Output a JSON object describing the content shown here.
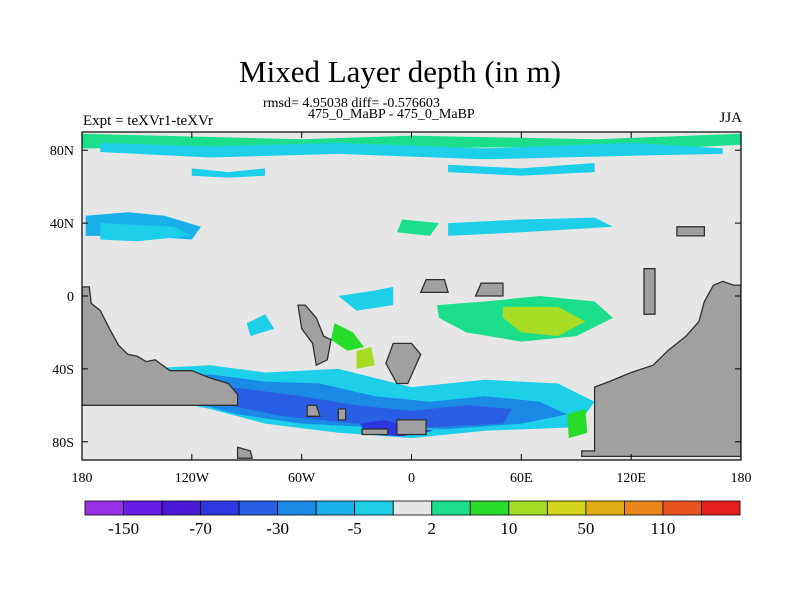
{
  "title": "Mixed Layer depth (in m)",
  "stats_text": "rmsd= 4.95038 diff= -0.576603",
  "subtitle": "475_0_MaBP - 475_0_MaBP",
  "experiment_label": "Expt = teXVr1-teXVr",
  "season": "JJA",
  "colors": {
    "land": "#a0a0a0",
    "background": "#e6e6e6",
    "coast": "#303030"
  },
  "x_ticks": [
    {
      "lon": -180,
      "label": "180"
    },
    {
      "lon": -120,
      "label": "120W"
    },
    {
      "lon": -60,
      "label": "60W"
    },
    {
      "lon": 0,
      "label": "0"
    },
    {
      "lon": 60,
      "label": "60E"
    },
    {
      "lon": 120,
      "label": "120E"
    },
    {
      "lon": 180,
      "label": "180"
    }
  ],
  "y_ticks": [
    {
      "lat": 80,
      "label": "80N"
    },
    {
      "lat": 40,
      "label": "40N"
    },
    {
      "lat": 0,
      "label": "0"
    },
    {
      "lat": -40,
      "label": "40S"
    },
    {
      "lat": -80,
      "label": "80S"
    }
  ],
  "colorbar": {
    "colors": [
      "#9a32e8",
      "#6a1cea",
      "#4a19d8",
      "#2d37e0",
      "#2a5ee5",
      "#1a8ae6",
      "#19b0ea",
      "#1dcfe8",
      "#e6e6e6",
      "#1ade8c",
      "#28dc2a",
      "#a6dc24",
      "#d4d41c",
      "#e1ad16",
      "#e8841a",
      "#e8531f",
      "#e61e1e"
    ],
    "labels": [
      {
        "after_index": 0,
        "text": "-150"
      },
      {
        "after_index": 2,
        "text": "-70"
      },
      {
        "after_index": 4,
        "text": "-30"
      },
      {
        "after_index": 6,
        "text": "-5"
      },
      {
        "after_index": 8,
        "text": "2"
      },
      {
        "after_index": 10,
        "text": "10"
      },
      {
        "after_index": 12,
        "text": "50"
      },
      {
        "after_index": 14,
        "text": "110"
      }
    ]
  },
  "land_masses": [
    {
      "name": "south-america",
      "points": [
        [
          -180,
          5
        ],
        [
          -176,
          5
        ],
        [
          -175,
          -4
        ],
        [
          -170,
          -8
        ],
        [
          -165,
          -18
        ],
        [
          -160,
          -27
        ],
        [
          -155,
          -32
        ],
        [
          -150,
          -33
        ],
        [
          -145,
          -36
        ],
        [
          -140,
          -35
        ],
        [
          -132,
          -41
        ],
        [
          -120,
          -41
        ],
        [
          -110,
          -45
        ],
        [
          -100,
          -48
        ],
        [
          -95,
          -54
        ],
        [
          -95,
          -60
        ],
        [
          -180,
          -60
        ]
      ]
    },
    {
      "name": "antarctica-shelf",
      "points": [
        [
          -95,
          -83
        ],
        [
          -88,
          -85
        ],
        [
          -87,
          -89
        ],
        [
          -95,
          -89
        ]
      ]
    },
    {
      "name": "central-island",
      "points": [
        [
          -62,
          -5
        ],
        [
          -58,
          -5
        ],
        [
          -52,
          -12
        ],
        [
          -48,
          -22
        ],
        [
          -44,
          -24
        ],
        [
          -46,
          -35
        ],
        [
          -52,
          -38
        ],
        [
          -54,
          -26
        ],
        [
          -60,
          -18
        ]
      ]
    },
    {
      "name": "southern-africa",
      "points": [
        [
          -10,
          -26
        ],
        [
          0,
          -26
        ],
        [
          5,
          -32
        ],
        [
          -2,
          -48
        ],
        [
          -8,
          -48
        ],
        [
          -14,
          -37
        ]
      ]
    },
    {
      "name": "small-island-a",
      "points": [
        [
          -57,
          -60
        ],
        [
          -52,
          -60
        ],
        [
          -50,
          -66
        ],
        [
          -57,
          -66
        ]
      ]
    },
    {
      "name": "small-island-b",
      "points": [
        [
          -40,
          -62
        ],
        [
          -36,
          -62
        ],
        [
          -36,
          -68
        ],
        [
          -40,
          -68
        ]
      ]
    },
    {
      "name": "sea-shelf",
      "points": [
        [
          -27,
          -73
        ],
        [
          -13,
          -73
        ],
        [
          -13,
          -76
        ],
        [
          -27,
          -76
        ]
      ]
    },
    {
      "name": "south-shelf",
      "points": [
        [
          -8,
          -68
        ],
        [
          8,
          -68
        ],
        [
          8,
          -76
        ],
        [
          -8,
          -76
        ]
      ]
    },
    {
      "name": "africa-tip",
      "points": [
        [
          5,
          2
        ],
        [
          20,
          2
        ],
        [
          18,
          9
        ],
        [
          8,
          9
        ]
      ]
    },
    {
      "name": "arabian-tip",
      "points": [
        [
          35,
          0
        ],
        [
          50,
          0
        ],
        [
          50,
          7
        ],
        [
          38,
          7
        ]
      ]
    },
    {
      "name": "australia",
      "points": [
        [
          93,
          -85
        ],
        [
          100,
          -85
        ],
        [
          100,
          -50
        ],
        [
          108,
          -47
        ],
        [
          120,
          -42
        ],
        [
          132,
          -38
        ],
        [
          140,
          -30
        ],
        [
          150,
          -22
        ],
        [
          157,
          -14
        ],
        [
          160,
          -3
        ],
        [
          165,
          6
        ],
        [
          170,
          8
        ],
        [
          176,
          6
        ],
        [
          180,
          6
        ],
        [
          180,
          -88
        ],
        [
          93,
          -88
        ]
      ]
    },
    {
      "name": "east-island",
      "points": [
        [
          127,
          15
        ],
        [
          133,
          15
        ],
        [
          133,
          -10
        ],
        [
          127,
          -10
        ]
      ]
    },
    {
      "name": "ne-island",
      "points": [
        [
          145,
          38
        ],
        [
          160,
          38
        ],
        [
          160,
          33
        ],
        [
          145,
          33
        ]
      ]
    }
  ],
  "ocean_patches": [
    {
      "name": "arctic-band-green",
      "points": [
        [
          -180,
          89
        ],
        [
          -60,
          86
        ],
        [
          0,
          88
        ],
        [
          100,
          86
        ],
        [
          180,
          89
        ],
        [
          180,
          83
        ],
        [
          140,
          81
        ],
        [
          80,
          82
        ],
        [
          0,
          81
        ],
        [
          -80,
          82
        ],
        [
          -180,
          81
        ]
      ],
      "color_index": 9
    },
    {
      "name": "arctic-band-cyan",
      "points": [
        [
          -170,
          84
        ],
        [
          -110,
          82
        ],
        [
          -40,
          84
        ],
        [
          40,
          81
        ],
        [
          120,
          84
        ],
        [
          170,
          81
        ],
        [
          170,
          78
        ],
        [
          120,
          77
        ],
        [
          40,
          75
        ],
        [
          -40,
          78
        ],
        [
          -110,
          76
        ],
        [
          -170,
          79
        ]
      ],
      "color_index": 7
    },
    {
      "name": "arctic-streak-1",
      "points": [
        [
          -120,
          70
        ],
        [
          -100,
          68
        ],
        [
          -80,
          70
        ],
        [
          -80,
          66
        ],
        [
          -100,
          65
        ],
        [
          -120,
          66
        ]
      ],
      "color_index": 7
    },
    {
      "name": "arctic-streak-2",
      "points": [
        [
          20,
          72
        ],
        [
          60,
          70
        ],
        [
          100,
          73
        ],
        [
          100,
          68
        ],
        [
          60,
          66
        ],
        [
          20,
          68
        ]
      ],
      "color_index": 7
    },
    {
      "name": "north-pacific-band-blue",
      "points": [
        [
          -178,
          44
        ],
        [
          -155,
          46
        ],
        [
          -135,
          44
        ],
        [
          -115,
          38
        ],
        [
          -120,
          31
        ],
        [
          -150,
          33
        ],
        [
          -178,
          33
        ]
      ],
      "color_index": 6
    },
    {
      "name": "north-pacific-band-cyan",
      "points": [
        [
          -170,
          40
        ],
        [
          -130,
          38
        ],
        [
          -120,
          33
        ],
        [
          -150,
          30
        ],
        0,
        [
          -170,
          31
        ]
      ],
      "color_index": 7
    },
    {
      "name": "north-atlantic-1",
      "points": [
        [
          20,
          40
        ],
        [
          60,
          42
        ],
        [
          100,
          43
        ],
        [
          110,
          38
        ],
        [
          60,
          35
        ],
        [
          20,
          33
        ]
      ],
      "color_index": 7
    },
    {
      "name": "north-atlantic-2",
      "points": [
        [
          -5,
          42
        ],
        [
          15,
          40
        ],
        [
          10,
          33
        ],
        [
          -8,
          35
        ]
      ],
      "color_index": 9
    },
    {
      "name": "mid-atlantic-blob",
      "points": [
        [
          -40,
          0
        ],
        [
          -20,
          3
        ],
        [
          -10,
          5
        ],
        [
          -10,
          -5
        ],
        [
          -30,
          -8
        ]
      ],
      "color_index": 7
    },
    {
      "name": "eq-blob-1",
      "points": [
        [
          -90,
          -15
        ],
        [
          -80,
          -10
        ],
        [
          -75,
          -18
        ],
        [
          -88,
          -22
        ]
      ],
      "color_index": 7
    },
    {
      "name": "eq-green-1",
      "points": [
        [
          -42,
          -15
        ],
        [
          -32,
          -20
        ],
        [
          -26,
          -28
        ],
        [
          -35,
          -30
        ],
        [
          -44,
          -24
        ]
      ],
      "color_index": 10
    },
    {
      "name": "indian-green",
      "points": [
        [
          14,
          -5
        ],
        [
          40,
          -3
        ],
        [
          70,
          0
        ],
        [
          100,
          -3
        ],
        [
          110,
          -12
        ],
        [
          90,
          -22
        ],
        [
          60,
          -25
        ],
        [
          30,
          -20
        ],
        [
          15,
          -12
        ]
      ],
      "color_index": 9
    },
    {
      "name": "indian-yellow",
      "points": [
        [
          50,
          -6
        ],
        [
          80,
          -6
        ],
        [
          95,
          -14
        ],
        [
          80,
          -22
        ],
        [
          60,
          -20
        ],
        [
          50,
          -12
        ]
      ],
      "color_index": 11
    },
    {
      "name": "south-band-cyan",
      "points": [
        [
          -150,
          -40
        ],
        [
          -110,
          -38
        ],
        [
          -80,
          -42
        ],
        [
          -40,
          -40
        ],
        [
          0,
          -50
        ],
        [
          40,
          -46
        ],
        [
          80,
          -48
        ],
        [
          100,
          -58
        ],
        [
          90,
          -72
        ],
        [
          40,
          -74
        ],
        [
          0,
          -78
        ],
        [
          -40,
          -75
        ],
        [
          -80,
          -70
        ],
        [
          -110,
          -62
        ],
        [
          -140,
          -56
        ],
        [
          -155,
          -48
        ]
      ],
      "color_index": 7
    },
    {
      "name": "south-band-blue",
      "points": [
        [
          -140,
          -45
        ],
        [
          -110,
          -43
        ],
        [
          -80,
          -47
        ],
        [
          -50,
          -48
        ],
        [
          -20,
          -55
        ],
        [
          10,
          -58
        ],
        [
          40,
          -55
        ],
        [
          70,
          -58
        ],
        [
          85,
          -65
        ],
        [
          60,
          -70
        ],
        [
          20,
          -73
        ],
        [
          -20,
          -72
        ],
        [
          -60,
          -70
        ],
        [
          -95,
          -65
        ],
        [
          -125,
          -57
        ]
      ],
      "color_index": 5
    },
    {
      "name": "south-band-deep",
      "points": [
        [
          -120,
          -48
        ],
        [
          -90,
          -51
        ],
        [
          -60,
          -55
        ],
        [
          -30,
          -60
        ],
        [
          0,
          -63
        ],
        [
          30,
          -60
        ],
        [
          55,
          -62
        ],
        [
          50,
          -70
        ],
        [
          10,
          -72
        ],
        [
          -30,
          -70
        ],
        [
          -70,
          -66
        ],
        [
          -110,
          -58
        ]
      ],
      "color_index": 4
    },
    {
      "name": "south-band-darkest",
      "points": [
        [
          -28,
          -70
        ],
        [
          -15,
          -68
        ],
        [
          0,
          -72
        ],
        [
          12,
          -74
        ],
        [
          -5,
          -77
        ],
        [
          -25,
          -76
        ]
      ],
      "color_index": 3
    },
    {
      "name": "south-yellow-1",
      "points": [
        [
          -30,
          -30
        ],
        [
          -22,
          -28
        ],
        [
          -20,
          -38
        ],
        [
          -30,
          -40
        ]
      ],
      "color_index": 11
    },
    {
      "name": "antarctic-green",
      "points": [
        [
          85,
          -65
        ],
        [
          95,
          -62
        ],
        [
          96,
          -75
        ],
        [
          86,
          -78
        ]
      ],
      "color_index": 10
    }
  ]
}
